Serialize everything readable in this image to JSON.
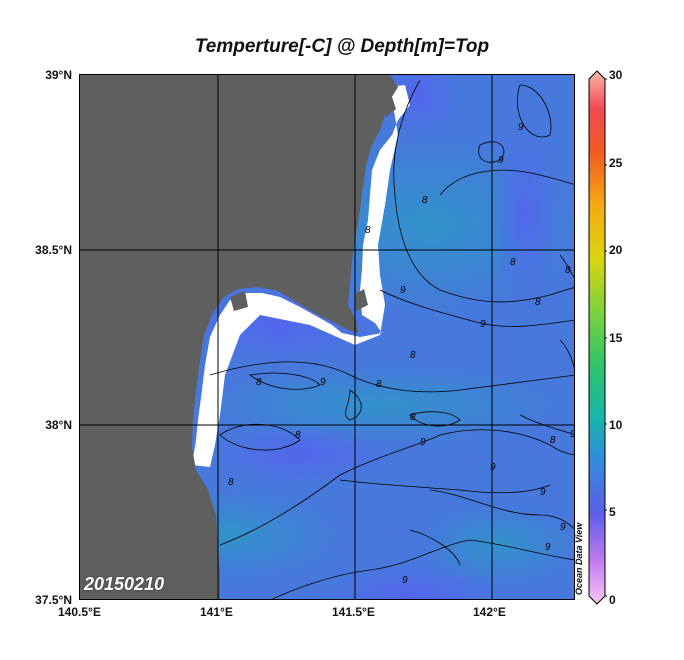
{
  "title": "Temperture[-C] @ Depth[m]=Top",
  "date_stamp": "20150210",
  "watermark": "Ocean Data View",
  "axes": {
    "lat_labels": [
      "39°N",
      "38.5°N",
      "38°N",
      "37.5°N"
    ],
    "lon_labels": [
      "140.5°E",
      "141°E",
      "141.5°E",
      "142°E"
    ]
  },
  "colorbar": {
    "ticks": [
      "30",
      "25",
      "20",
      "15",
      "10",
      "5",
      "0"
    ],
    "min": 0,
    "max": 30
  },
  "contour_labels": [
    "9",
    "9",
    "8",
    "9",
    "9",
    "8",
    "8",
    "8",
    "8",
    "8",
    "8",
    "8",
    "8",
    "9",
    "8",
    "9",
    "8",
    "9",
    "9",
    "8",
    "9",
    "9",
    "9",
    "9"
  ],
  "colors": {
    "land": "#5f5f5f",
    "sea_cool": "#5a67ec",
    "sea_warm": "#3a8bd2",
    "nodata": "#ffffff",
    "grid": "#000000"
  }
}
